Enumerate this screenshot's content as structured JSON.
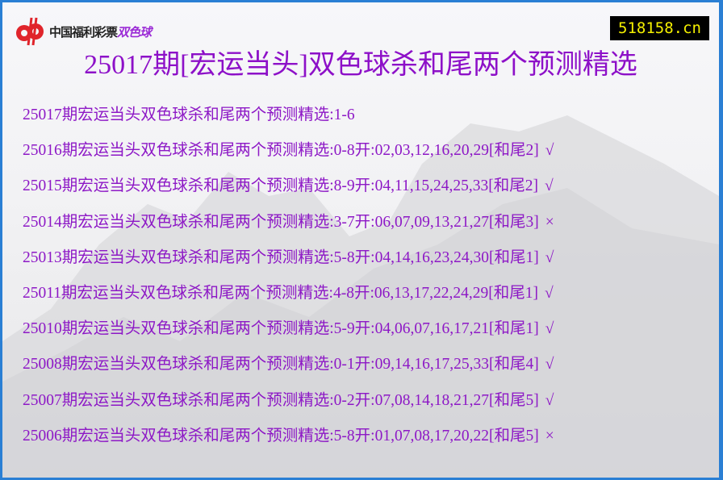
{
  "logo": {
    "brand": "中国福利彩票",
    "game": "双色球"
  },
  "site_badge": "518158.cn",
  "title": "25017期[宏运当头]双色球杀和尾两个预测精选",
  "colors": {
    "text": "#8d18c6",
    "badge_bg": "#000000",
    "badge_text": "#f5f000",
    "frame": "#2a7fd4"
  },
  "rows": [
    {
      "text": "25017期宏运当头双色球杀和尾两个预测精选:1-6",
      "result": ""
    },
    {
      "text": "25016期宏运当头双色球杀和尾两个预测精选:0-8开:02,03,12,16,20,29[和尾2]",
      "result": "√"
    },
    {
      "text": "25015期宏运当头双色球杀和尾两个预测精选:8-9开:04,11,15,24,25,33[和尾2]",
      "result": "√"
    },
    {
      "text": "25014期宏运当头双色球杀和尾两个预测精选:3-7开:06,07,09,13,21,27[和尾3]",
      "result": "×"
    },
    {
      "text": "25013期宏运当头双色球杀和尾两个预测精选:5-8开:04,14,16,23,24,30[和尾1]",
      "result": "√"
    },
    {
      "text": "25011期宏运当头双色球杀和尾两个预测精选:4-8开:06,13,17,22,24,29[和尾1]",
      "result": "√"
    },
    {
      "text": "25010期宏运当头双色球杀和尾两个预测精选:5-9开:04,06,07,16,17,21[和尾1]",
      "result": "√"
    },
    {
      "text": "25008期宏运当头双色球杀和尾两个预测精选:0-1开:09,14,16,17,25,33[和尾4]",
      "result": "√"
    },
    {
      "text": "25007期宏运当头双色球杀和尾两个预测精选:0-2开:07,08,14,18,21,27[和尾5]",
      "result": "√"
    },
    {
      "text": "25006期宏运当头双色球杀和尾两个预测精选:5-8开:01,07,08,17,20,22[和尾5]",
      "result": "×"
    }
  ]
}
